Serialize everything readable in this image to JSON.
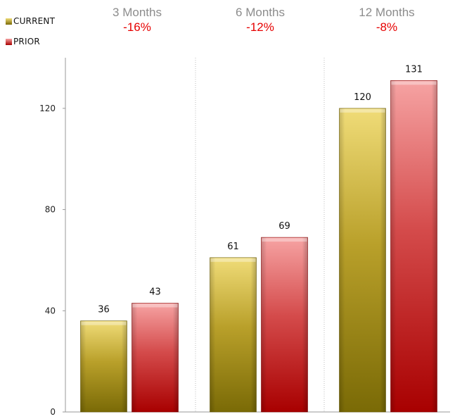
{
  "chart_data": {
    "type": "bar",
    "categories": [
      "3 Months",
      "6 Months",
      "12 Months"
    ],
    "changes": [
      "-16%",
      "-12%",
      "-8%"
    ],
    "series": [
      {
        "name": "CURRENT",
        "values": [
          36,
          61,
          120
        ]
      },
      {
        "name": "PRIOR",
        "values": [
          43,
          69,
          131
        ]
      }
    ],
    "yticks": [
      0,
      40,
      80,
      120
    ],
    "ylim": [
      0,
      140
    ],
    "grid": "vertical dotted separators",
    "legend": "top-left"
  },
  "colors": {
    "current_light": "#f0dc78",
    "current_dark": "#7a6a06",
    "prior_light": "#f6a3a3",
    "prior_dark": "#a80000",
    "change_text": "#e60000",
    "title_text": "#8c8c8c"
  }
}
